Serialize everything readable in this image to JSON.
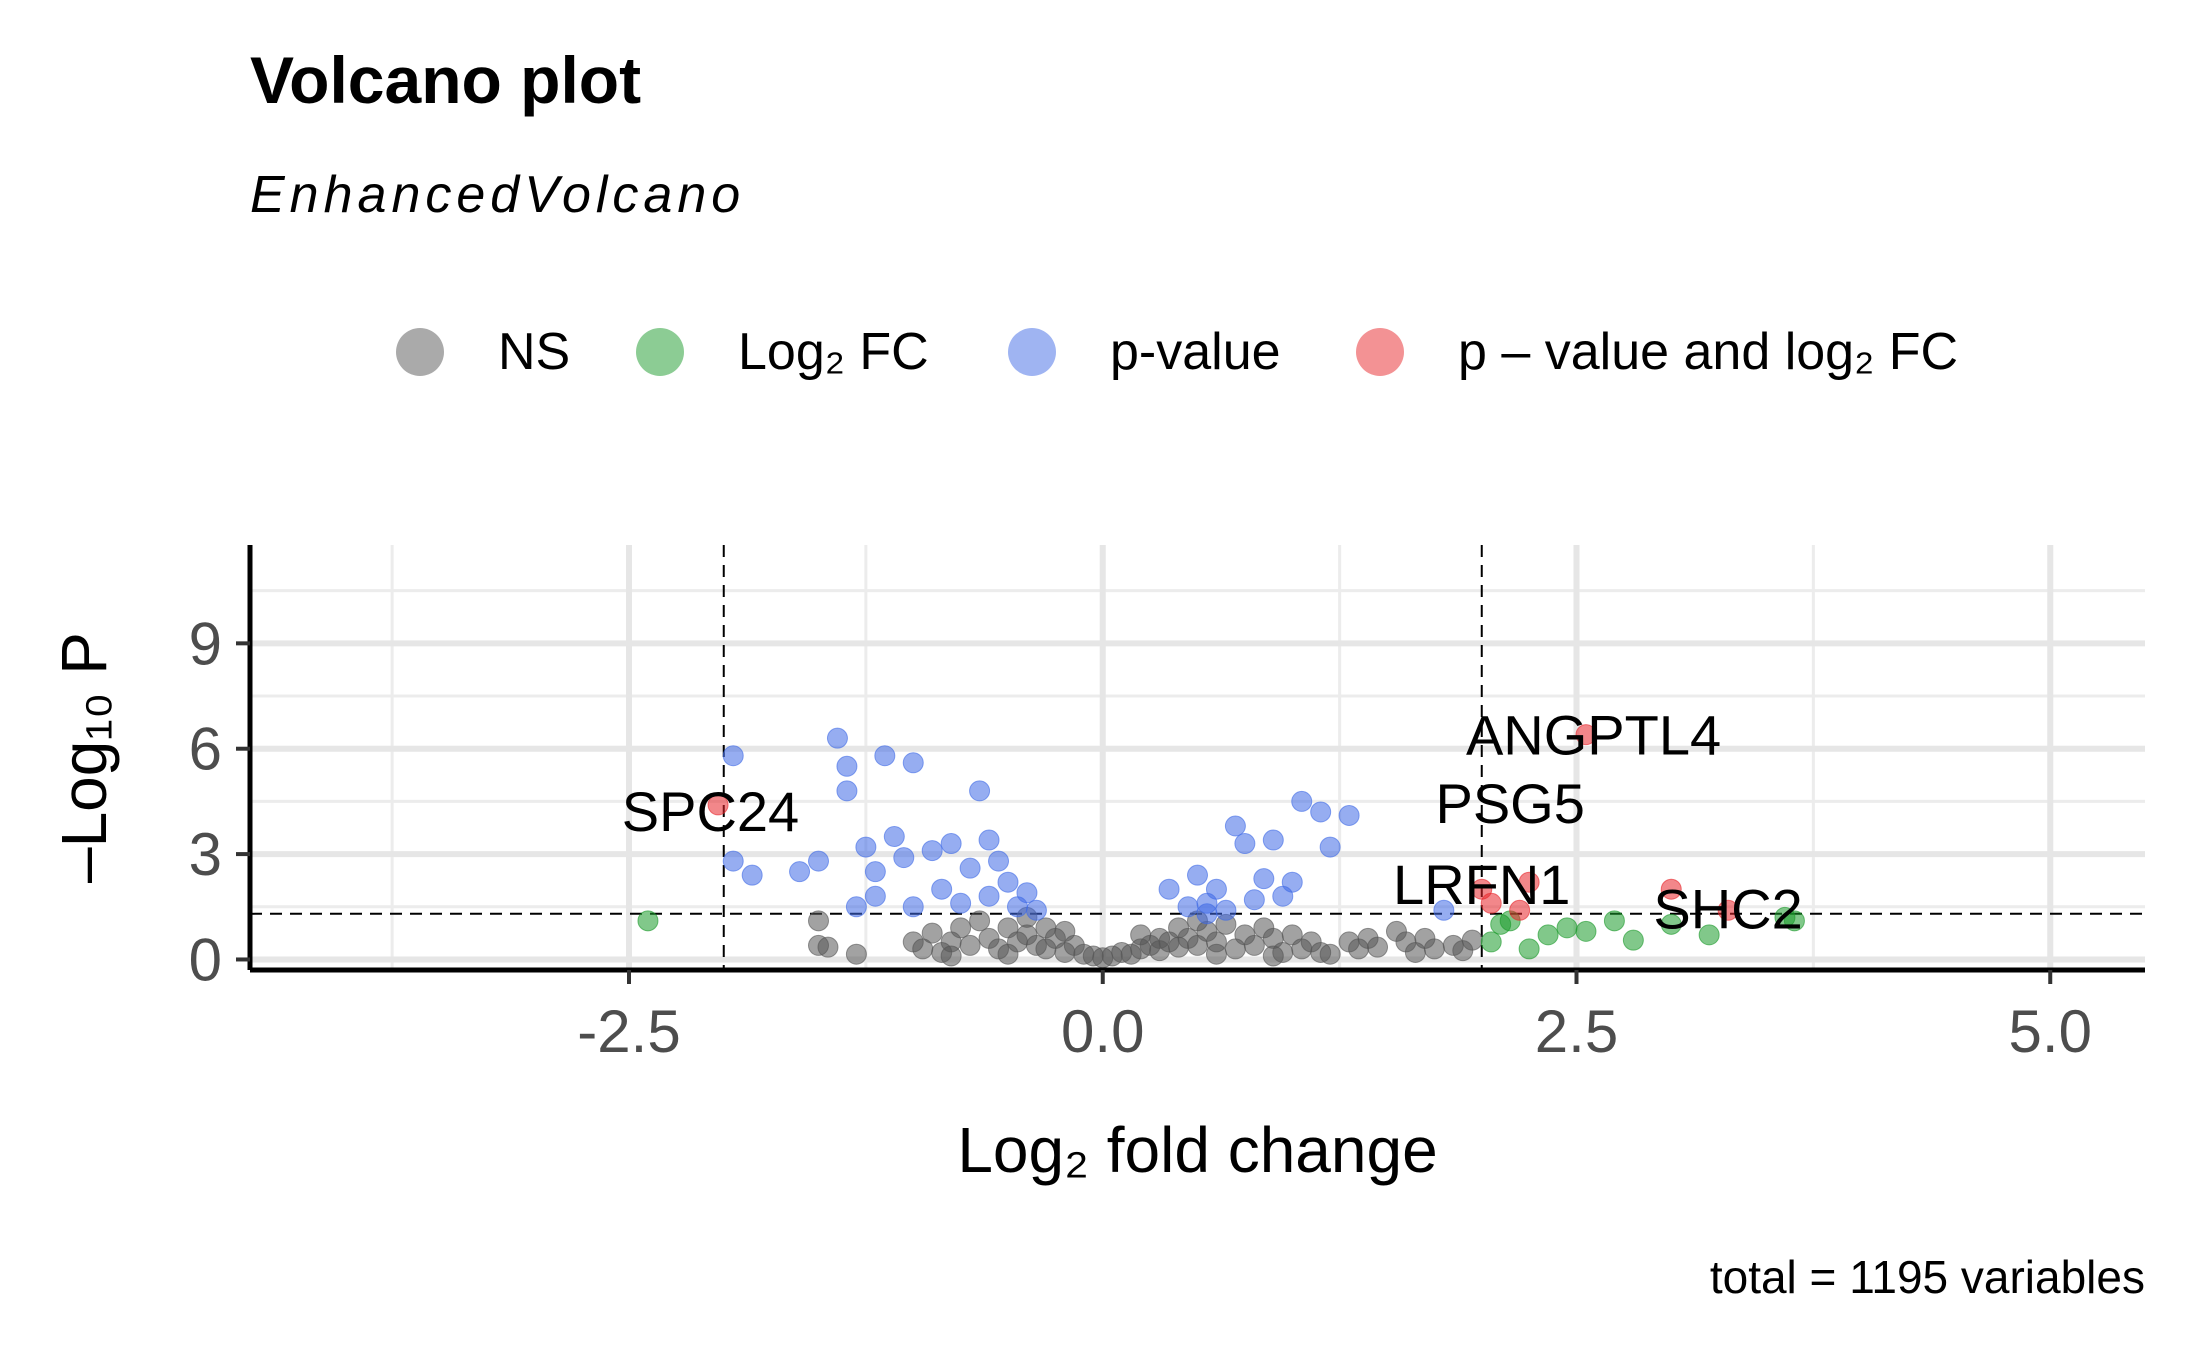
{
  "title": "Volcano plot",
  "subtitle": "EnhancedVolcano",
  "caption": "total = 1195 variables",
  "legend": [
    {
      "label": "NS",
      "color": "#555555"
    },
    {
      "label": "Log₂ FC",
      "color": "#1a9a2a"
    },
    {
      "label": "p-value",
      "color": "#3f6ae6"
    },
    {
      "label": "p – value and log₂ FC",
      "color": "#e8252a"
    }
  ],
  "chart_data": {
    "type": "scatter",
    "title": "Volcano plot",
    "subtitle": "EnhancedVolcano",
    "xlabel": "Log₂ fold change",
    "ylabel": "–Log₁₀ P",
    "xlim": [
      -4.5,
      5.5
    ],
    "ylim": [
      -0.3,
      11.8
    ],
    "xticks": [
      -2.5,
      0.0,
      2.5,
      5.0
    ],
    "xtick_labels": [
      "-2.5",
      "0.0",
      "2.5",
      "5.0"
    ],
    "yticks": [
      0,
      3,
      6,
      9
    ],
    "ytick_labels": [
      "0",
      "3",
      "6",
      "9"
    ],
    "cutoffs": {
      "log2fc": [
        -2,
        2
      ],
      "neg_log10_p": 1.3
    },
    "grid": true,
    "legend_position": "top",
    "series": [
      {
        "name": "NS",
        "color": "#555555",
        "points": [
          [
            -1.5,
            1.1
          ],
          [
            -1.5,
            0.4
          ],
          [
            -1.45,
            0.35
          ],
          [
            -1.3,
            0.15
          ],
          [
            -1.0,
            0.5
          ],
          [
            -0.95,
            0.3
          ],
          [
            -0.9,
            0.75
          ],
          [
            -0.85,
            0.2
          ],
          [
            -0.8,
            0.5
          ],
          [
            -0.75,
            0.9
          ],
          [
            -0.7,
            0.4
          ],
          [
            -0.65,
            1.1
          ],
          [
            -0.6,
            0.6
          ],
          [
            -0.55,
            0.3
          ],
          [
            -0.5,
            0.9
          ],
          [
            -0.45,
            0.5
          ],
          [
            -0.4,
            1.2
          ],
          [
            -0.4,
            0.7
          ],
          [
            -0.35,
            0.4
          ],
          [
            -0.3,
            0.9
          ],
          [
            -0.3,
            0.3
          ],
          [
            -0.25,
            0.6
          ],
          [
            -0.2,
            0.2
          ],
          [
            -0.15,
            0.4
          ],
          [
            -0.1,
            0.15
          ],
          [
            -0.05,
            0.1
          ],
          [
            0.0,
            0.05
          ],
          [
            0.05,
            0.1
          ],
          [
            0.1,
            0.2
          ],
          [
            0.15,
            0.15
          ],
          [
            0.2,
            0.3
          ],
          [
            0.25,
            0.4
          ],
          [
            0.3,
            0.6
          ],
          [
            0.3,
            0.25
          ],
          [
            0.35,
            0.5
          ],
          [
            0.4,
            0.9
          ],
          [
            0.4,
            0.35
          ],
          [
            0.45,
            0.6
          ],
          [
            0.5,
            1.1
          ],
          [
            0.5,
            0.4
          ],
          [
            0.55,
            0.8
          ],
          [
            0.6,
            0.5
          ],
          [
            0.65,
            1.0
          ],
          [
            0.7,
            0.3
          ],
          [
            0.75,
            0.7
          ],
          [
            0.8,
            0.4
          ],
          [
            0.85,
            0.9
          ],
          [
            0.9,
            0.6
          ],
          [
            0.95,
            0.2
          ],
          [
            1.0,
            0.7
          ],
          [
            1.05,
            0.3
          ],
          [
            1.1,
            0.5
          ],
          [
            1.15,
            0.2
          ],
          [
            1.2,
            0.15
          ],
          [
            1.3,
            0.5
          ],
          [
            1.35,
            0.3
          ],
          [
            1.4,
            0.6
          ],
          [
            1.45,
            0.35
          ],
          [
            1.55,
            0.8
          ],
          [
            1.6,
            0.5
          ],
          [
            1.65,
            0.2
          ],
          [
            1.7,
            0.6
          ],
          [
            1.75,
            0.3
          ],
          [
            1.85,
            0.4
          ],
          [
            1.9,
            0.25
          ],
          [
            1.95,
            0.55
          ],
          [
            -0.2,
            0.8
          ],
          [
            0.2,
            0.7
          ],
          [
            -0.5,
            0.15
          ],
          [
            0.6,
            0.15
          ],
          [
            -0.8,
            0.1
          ],
          [
            0.9,
            0.1
          ]
        ]
      },
      {
        "name": "Log₂ FC",
        "color": "#1a9a2a",
        "points": [
          [
            -2.4,
            1.1
          ],
          [
            2.05,
            0.5
          ],
          [
            2.1,
            1.0
          ],
          [
            2.15,
            1.1
          ],
          [
            2.25,
            0.3
          ],
          [
            2.35,
            0.7
          ],
          [
            2.45,
            0.9
          ],
          [
            2.55,
            0.8
          ],
          [
            2.7,
            1.1
          ],
          [
            2.8,
            0.55
          ],
          [
            3.0,
            1.0
          ],
          [
            3.2,
            0.7
          ],
          [
            3.6,
            1.2
          ],
          [
            3.65,
            1.1
          ]
        ]
      },
      {
        "name": "p-value",
        "color": "#3f6ae6",
        "points": [
          [
            -1.95,
            5.8
          ],
          [
            -1.95,
            2.8
          ],
          [
            -1.85,
            2.4
          ],
          [
            -1.6,
            2.5
          ],
          [
            -1.5,
            2.8
          ],
          [
            -1.4,
            6.3
          ],
          [
            -1.35,
            5.5
          ],
          [
            -1.35,
            4.8
          ],
          [
            -1.25,
            3.2
          ],
          [
            -1.2,
            2.5
          ],
          [
            -1.2,
            1.8
          ],
          [
            -1.15,
            5.8
          ],
          [
            -1.1,
            3.5
          ],
          [
            -1.05,
            2.9
          ],
          [
            -1.0,
            5.6
          ],
          [
            -0.9,
            3.1
          ],
          [
            -0.85,
            2.0
          ],
          [
            -0.8,
            3.3
          ],
          [
            -0.7,
            2.6
          ],
          [
            -0.65,
            4.8
          ],
          [
            -0.6,
            3.4
          ],
          [
            -0.55,
            2.8
          ],
          [
            -0.5,
            2.2
          ],
          [
            -0.4,
            1.9
          ],
          [
            -1.3,
            1.5
          ],
          [
            -1.0,
            1.5
          ],
          [
            -0.75,
            1.6
          ],
          [
            -0.6,
            1.8
          ],
          [
            -0.45,
            1.5
          ],
          [
            -0.35,
            1.4
          ],
          [
            0.35,
            2.0
          ],
          [
            0.45,
            1.5
          ],
          [
            0.5,
            2.4
          ],
          [
            0.55,
            1.6
          ],
          [
            0.6,
            2.0
          ],
          [
            0.7,
            3.8
          ],
          [
            0.75,
            3.3
          ],
          [
            0.8,
            1.7
          ],
          [
            0.85,
            2.3
          ],
          [
            0.9,
            3.4
          ],
          [
            0.95,
            1.8
          ],
          [
            1.0,
            2.2
          ],
          [
            1.05,
            4.5
          ],
          [
            1.15,
            4.2
          ],
          [
            1.2,
            3.2
          ],
          [
            1.3,
            4.1
          ],
          [
            1.8,
            1.4
          ],
          [
            0.55,
            1.3
          ],
          [
            0.65,
            1.4
          ]
        ]
      },
      {
        "name": "p – value and log₂ FC",
        "color": "#e8252a",
        "points": [
          [
            -2.03,
            4.4
          ],
          [
            2.0,
            2.0
          ],
          [
            2.05,
            1.6
          ],
          [
            2.2,
            1.4
          ],
          [
            2.25,
            2.2
          ],
          [
            2.55,
            6.4
          ],
          [
            3.0,
            2.0
          ],
          [
            3.3,
            1.4
          ]
        ]
      }
    ],
    "annotations": [
      {
        "label": "SPC24",
        "x": -2.03,
        "y": 4.4
      },
      {
        "label": "ANGPTL4",
        "x": 2.55,
        "y": 6.4
      },
      {
        "label": "PSG5",
        "x": 2.15,
        "y": 4.6
      },
      {
        "label": "LRFN1",
        "x": 2.0,
        "y": 2.0
      },
      {
        "label": "SHC2",
        "x": 3.3,
        "y": 1.4
      }
    ]
  }
}
